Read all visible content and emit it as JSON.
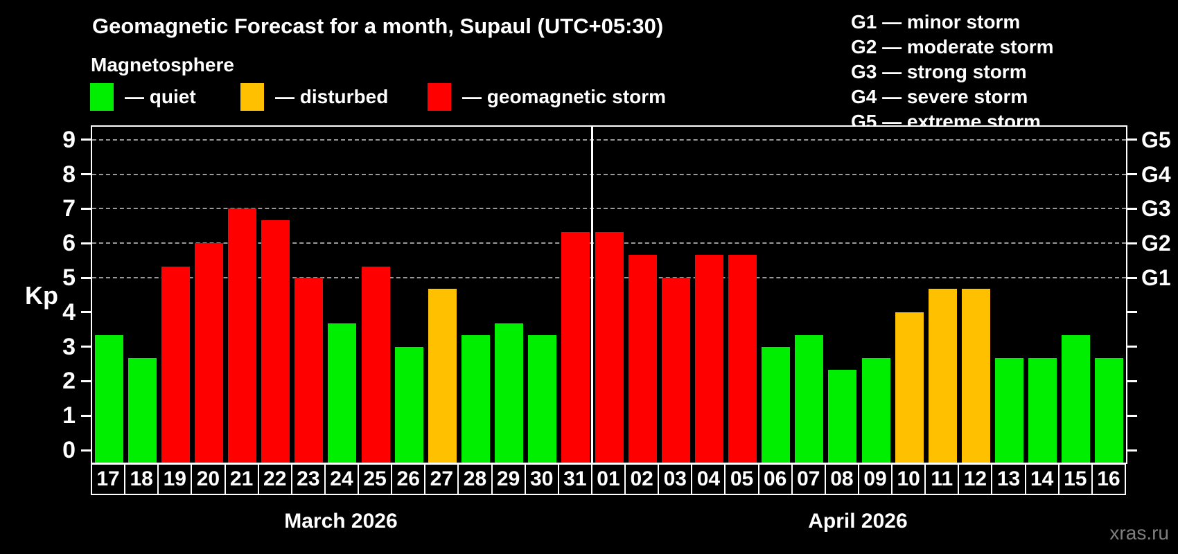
{
  "title": "Geomagnetic Forecast for a month, Supaul (UTC+05:30)",
  "subtitle": "Magnetosphere",
  "legend": {
    "quiet": "— quiet",
    "disturbed": "— disturbed",
    "storm": "— geomagnetic storm"
  },
  "g_legend": [
    "G1 — minor storm",
    "G2 — moderate storm",
    "G3 — strong storm",
    "G4 — severe storm",
    "G5 — extreme storm"
  ],
  "axis": {
    "kp_label": "Kp",
    "left_tick_values": [
      0,
      1,
      2,
      3,
      4,
      5,
      6,
      7,
      8,
      9
    ],
    "right_labels": [
      {
        "kp": 5,
        "label": "G1"
      },
      {
        "kp": 6,
        "label": "G2"
      },
      {
        "kp": 7,
        "label": "G3"
      },
      {
        "kp": 8,
        "label": "G4"
      },
      {
        "kp": 9,
        "label": "G5"
      }
    ]
  },
  "months": [
    {
      "name": "March 2026",
      "days": 15
    },
    {
      "name": "April 2026",
      "days": 16
    }
  ],
  "watermark": "xras.ru",
  "colors": {
    "quiet": "#00ee00",
    "disturbed": "#ffc000",
    "storm": "#ff0000",
    "grid": "#9a9a9a"
  },
  "chart_data": {
    "type": "bar",
    "title": "Geomagnetic Forecast for a month, Supaul (UTC+05:30)",
    "xlabel": "",
    "ylabel": "Kp",
    "ylim": [
      0,
      9
    ],
    "gridlines_at_kp": [
      5,
      6,
      7,
      8,
      9
    ],
    "legend_position": "top",
    "categories": [
      "17",
      "18",
      "19",
      "20",
      "21",
      "22",
      "23",
      "24",
      "25",
      "26",
      "27",
      "28",
      "29",
      "30",
      "31",
      "01",
      "02",
      "03",
      "04",
      "05",
      "06",
      "07",
      "08",
      "09",
      "10",
      "11",
      "12",
      "13",
      "14",
      "15",
      "16"
    ],
    "values": [
      3.33,
      2.67,
      5.33,
      6.0,
      7.0,
      6.67,
      5.0,
      3.67,
      5.33,
      3.0,
      4.67,
      3.33,
      3.67,
      3.33,
      6.33,
      6.33,
      5.67,
      5.0,
      5.67,
      5.67,
      3.0,
      3.33,
      2.33,
      2.67,
      4.0,
      4.67,
      4.67,
      2.67,
      2.67,
      3.33,
      2.67
    ],
    "statuses": [
      "quiet",
      "quiet",
      "storm",
      "storm",
      "storm",
      "storm",
      "storm",
      "quiet",
      "storm",
      "quiet",
      "disturbed",
      "quiet",
      "quiet",
      "quiet",
      "storm",
      "storm",
      "storm",
      "storm",
      "storm",
      "storm",
      "quiet",
      "quiet",
      "quiet",
      "quiet",
      "disturbed",
      "disturbed",
      "disturbed",
      "quiet",
      "quiet",
      "quiet",
      "quiet"
    ]
  }
}
